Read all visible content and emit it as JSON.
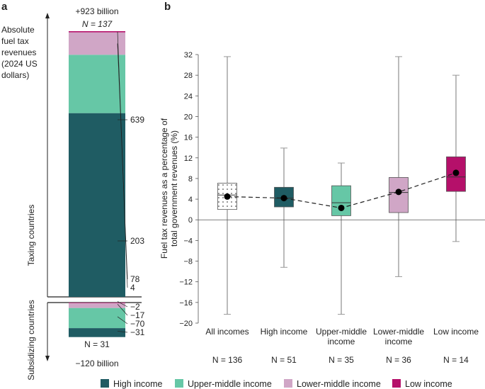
{
  "chart_data": [
    {
      "panel": "a",
      "type": "bar",
      "top_label": "+923 billion",
      "bottom_label": "−120 billion",
      "axis_title": [
        "Absolute",
        "fuel tax",
        "revenues",
        "(2024 US",
        "dollars)"
      ],
      "taxing_label": "Taxing countries",
      "subsidizing_label": "Subsidizing countries",
      "taxing_n": "N = 137",
      "subsidizing_n": "N = 31",
      "taxing": [
        {
          "group": "High income",
          "value": 639,
          "label": "639"
        },
        {
          "group": "Upper-middle income",
          "value": 203,
          "label": "203"
        },
        {
          "group": "Lower-middle income",
          "value": 78,
          "label": "78"
        },
        {
          "group": "Low income",
          "value": 4,
          "label": "4"
        }
      ],
      "subsidizing": [
        {
          "group": "Low income",
          "value": -2,
          "label": "−2"
        },
        {
          "group": "Lower-middle income",
          "value": -17,
          "label": "−17"
        },
        {
          "group": "Upper-middle income",
          "value": -70,
          "label": "−70"
        },
        {
          "group": "High income",
          "value": -31,
          "label": "−31"
        }
      ]
    },
    {
      "panel": "b",
      "type": "box",
      "ylabel": [
        "Fuel tax revenues as a percentage of",
        "total government revenues (%)"
      ],
      "ylim": [
        -20,
        32
      ],
      "yticks": [
        32,
        28,
        24,
        20,
        16,
        12,
        8,
        4,
        0,
        -4,
        -8,
        -12,
        -16,
        -20
      ],
      "boxes": [
        {
          "category": [
            "All incomes"
          ],
          "n": "N = 136",
          "min": -18.3,
          "q1": 2.0,
          "median": 4.8,
          "q3": 7.1,
          "max": 31.6,
          "mean": 4.5,
          "color": "dotted"
        },
        {
          "category": [
            "High income"
          ],
          "n": "N = 51",
          "min": -9.2,
          "q1": 2.5,
          "median": 4.2,
          "q3": 6.3,
          "max": 13.9,
          "mean": 4.2,
          "color": "#1f5c63"
        },
        {
          "category": [
            "Upper-middle",
            "income"
          ],
          "n": "N = 35",
          "min": -18.3,
          "q1": 0.8,
          "median": 3.3,
          "q3": 6.6,
          "max": 11.0,
          "mean": 2.3,
          "color": "#66c7a6"
        },
        {
          "category": [
            "Lower-middle",
            "income"
          ],
          "n": "N = 36",
          "min": -11.0,
          "q1": 1.4,
          "median": 5.3,
          "q3": 8.2,
          "max": 31.6,
          "mean": 5.4,
          "color": "#d0a6c6"
        },
        {
          "category": [
            "Low income"
          ],
          "n": "N = 14",
          "min": -4.2,
          "q1": 5.5,
          "median": 8.3,
          "q3": 12.2,
          "max": 28.0,
          "mean": 9.1,
          "color": "#b5106a"
        }
      ]
    }
  ],
  "panel_labels": [
    "a",
    "b"
  ],
  "legend": [
    {
      "label": "High income",
      "color": "#1f5c63"
    },
    {
      "label": "Upper-middle income",
      "color": "#66c7a6"
    },
    {
      "label": "Lower-middle income",
      "color": "#d0a6c6"
    },
    {
      "label": "Low income",
      "color": "#b5106a"
    }
  ]
}
